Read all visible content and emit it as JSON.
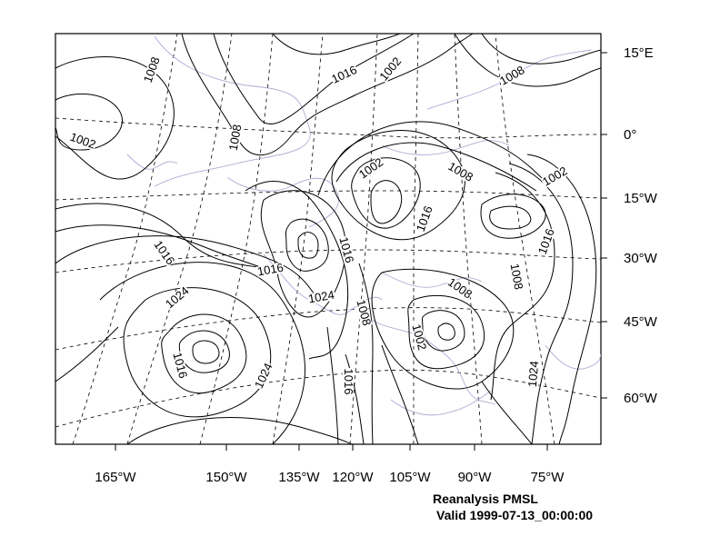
{
  "caption": {
    "line1": "Reanalysis PMSL",
    "line2": "Valid 1999-07-13_00:00:00"
  },
  "axis_labels": {
    "bottom": [
      "165°W",
      "150°W",
      "135°W",
      "120°W",
      "105°W",
      "90°W",
      "75°W"
    ],
    "right": [
      "15°E",
      "0°",
      "15°W",
      "30°W",
      "45°W",
      "60°W"
    ]
  },
  "contour_labels": [
    "1008",
    "1002",
    "1008",
    "1016",
    "1002",
    "1008",
    "1002",
    "1008",
    "1016",
    "1002",
    "1016",
    "1016",
    "1016",
    "1016",
    "1024",
    "1024",
    "1008",
    "1008",
    "1002",
    "1016",
    "1024",
    "1016",
    "1024",
    "1008"
  ],
  "colors": {
    "contour": "#000000",
    "coastline": "#b7a6d4",
    "grid": "#000000",
    "background": "#ffffff"
  }
}
